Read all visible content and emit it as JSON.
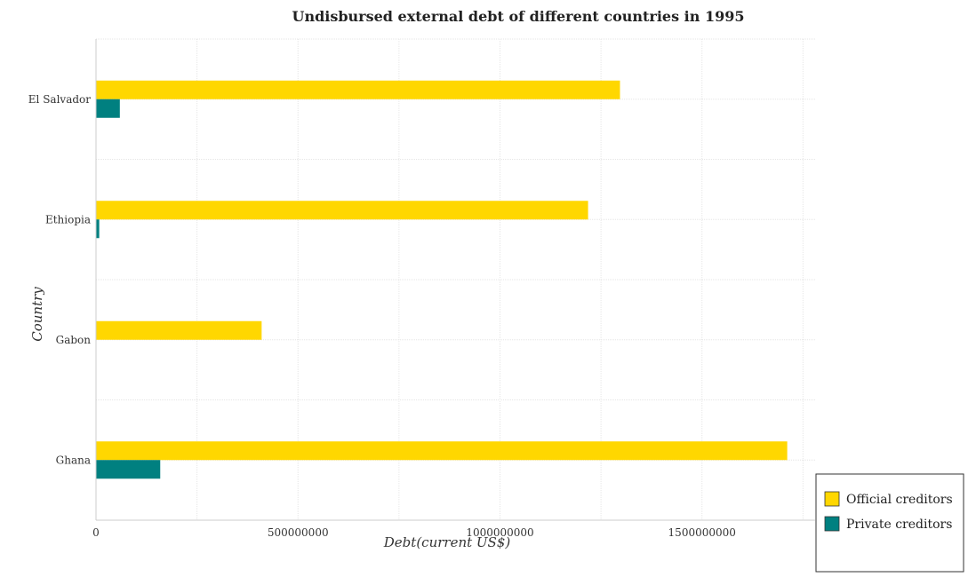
{
  "chart_data": {
    "type": "bar",
    "orientation": "horizontal",
    "title": "Undisbursed external debt of different countries in 1995",
    "xlabel": "Debt(current US$)",
    "ylabel": "Country",
    "categories": [
      "El Salvador",
      "Ethiopia",
      "Gabon",
      "Ghana"
    ],
    "series": [
      {
        "name": "Official creditors",
        "color": "#ffd700",
        "values": [
          1297000000,
          1218000000,
          410000000,
          1711000000
        ]
      },
      {
        "name": "Private creditors",
        "color": "#008080",
        "values": [
          59000000,
          8000000,
          0,
          159000000
        ]
      }
    ],
    "xlim": [
      0,
      1780000000
    ],
    "xticks": [
      0,
      500000000,
      1000000000,
      1500000000
    ],
    "xtick_labels": [
      "0",
      "500000000",
      "1000000000",
      "1500000000"
    ],
    "grid": true,
    "legend_position": "bottom-right"
  }
}
